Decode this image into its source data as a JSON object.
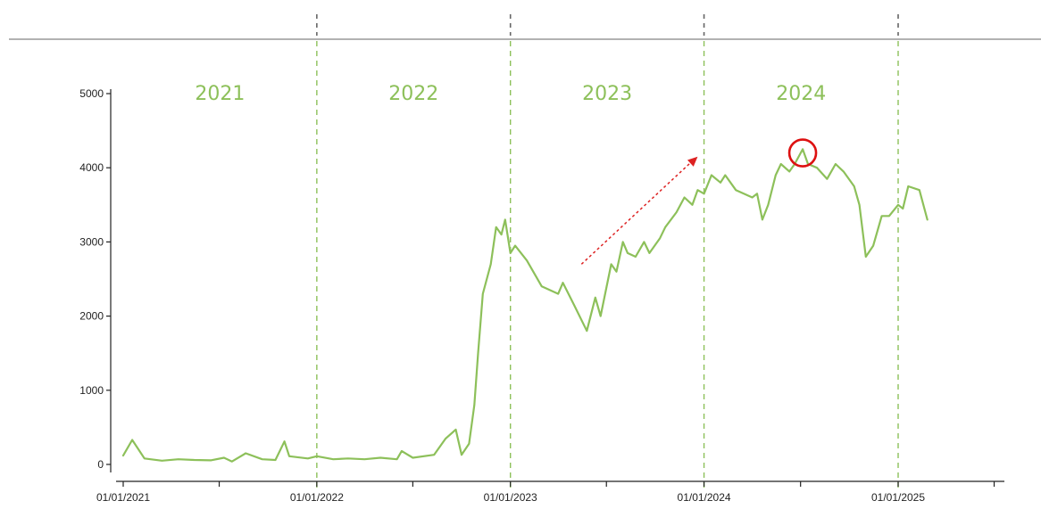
{
  "chart_data": {
    "type": "line",
    "title": "",
    "xlabel": "",
    "ylabel": "",
    "ylim": [
      0,
      5000
    ],
    "xlim": [
      "2021-01-01",
      "2025-06-01"
    ],
    "y_ticks": [
      "0",
      "1000",
      "2000",
      "3000",
      "4000",
      "5000"
    ],
    "x_ticks": [
      {
        "date": "2021-01-01",
        "label": "01/01/2021"
      },
      {
        "date": "2022-01-01",
        "label": "01/01/2022"
      },
      {
        "date": "2023-01-01",
        "label": "01/01/2023"
      },
      {
        "date": "2024-01-01",
        "label": "01/01/2024"
      },
      {
        "date": "2025-01-01",
        "label": "01/01/2025"
      }
    ],
    "year_labels": [
      {
        "year_start": "2021-01-01",
        "year_end": "2022-01-01",
        "text": "2021"
      },
      {
        "year_start": "2022-01-01",
        "year_end": "2023-01-01",
        "text": "2022"
      },
      {
        "year_start": "2023-01-01",
        "year_end": "2024-01-01",
        "text": "2023"
      },
      {
        "year_start": "2024-01-01",
        "year_end": "2025-01-01",
        "text": "2024"
      }
    ],
    "year_boundaries": [
      "2022-01-01",
      "2023-01-01",
      "2024-01-01",
      "2025-01-01"
    ],
    "grid": false,
    "series": [
      {
        "color": "#8dc05a",
        "points": [
          [
            "2021-01-01",
            120
          ],
          [
            "2021-01-18",
            330
          ],
          [
            "2021-02-10",
            80
          ],
          [
            "2021-03-15",
            50
          ],
          [
            "2021-04-15",
            70
          ],
          [
            "2021-05-15",
            60
          ],
          [
            "2021-06-15",
            55
          ],
          [
            "2021-07-10",
            90
          ],
          [
            "2021-07-25",
            40
          ],
          [
            "2021-08-20",
            150
          ],
          [
            "2021-09-20",
            70
          ],
          [
            "2021-10-15",
            60
          ],
          [
            "2021-11-01",
            310
          ],
          [
            "2021-11-10",
            110
          ],
          [
            "2021-12-15",
            80
          ],
          [
            "2022-01-01",
            110
          ],
          [
            "2022-02-01",
            70
          ],
          [
            "2022-03-01",
            80
          ],
          [
            "2022-04-01",
            70
          ],
          [
            "2022-05-01",
            90
          ],
          [
            "2022-06-01",
            70
          ],
          [
            "2022-06-10",
            180
          ],
          [
            "2022-07-01",
            90
          ],
          [
            "2022-08-10",
            130
          ],
          [
            "2022-09-01",
            350
          ],
          [
            "2022-09-20",
            470
          ],
          [
            "2022-10-01",
            130
          ],
          [
            "2022-10-15",
            280
          ],
          [
            "2022-10-25",
            800
          ],
          [
            "2022-11-01",
            1500
          ],
          [
            "2022-11-10",
            2300
          ],
          [
            "2022-11-25",
            2700
          ],
          [
            "2022-12-05",
            3200
          ],
          [
            "2022-12-15",
            3100
          ],
          [
            "2022-12-22",
            3300
          ],
          [
            "2023-01-01",
            2850
          ],
          [
            "2023-01-10",
            2950
          ],
          [
            "2023-02-01",
            2750
          ],
          [
            "2023-03-01",
            2400
          ],
          [
            "2023-04-01",
            2300
          ],
          [
            "2023-04-10",
            2450
          ],
          [
            "2023-05-01",
            2150
          ],
          [
            "2023-05-25",
            1800
          ],
          [
            "2023-06-10",
            2250
          ],
          [
            "2023-06-20",
            2000
          ],
          [
            "2023-07-10",
            2700
          ],
          [
            "2023-07-20",
            2600
          ],
          [
            "2023-08-01",
            3000
          ],
          [
            "2023-08-10",
            2850
          ],
          [
            "2023-08-25",
            2800
          ],
          [
            "2023-09-10",
            3000
          ],
          [
            "2023-09-20",
            2850
          ],
          [
            "2023-10-10",
            3050
          ],
          [
            "2023-10-20",
            3200
          ],
          [
            "2023-11-10",
            3400
          ],
          [
            "2023-11-25",
            3600
          ],
          [
            "2023-12-10",
            3500
          ],
          [
            "2023-12-20",
            3700
          ],
          [
            "2024-01-01",
            3650
          ],
          [
            "2024-01-15",
            3900
          ],
          [
            "2024-02-01",
            3800
          ],
          [
            "2024-02-10",
            3900
          ],
          [
            "2024-03-01",
            3700
          ],
          [
            "2024-04-01",
            3600
          ],
          [
            "2024-04-10",
            3650
          ],
          [
            "2024-04-20",
            3300
          ],
          [
            "2024-05-01",
            3500
          ],
          [
            "2024-05-15",
            3900
          ],
          [
            "2024-05-25",
            4050
          ],
          [
            "2024-06-10",
            3950
          ],
          [
            "2024-06-20",
            4050
          ],
          [
            "2024-07-05",
            4250
          ],
          [
            "2024-07-15",
            4050
          ],
          [
            "2024-08-01",
            4000
          ],
          [
            "2024-08-20",
            3850
          ],
          [
            "2024-09-05",
            4050
          ],
          [
            "2024-09-20",
            3950
          ],
          [
            "2024-10-10",
            3750
          ],
          [
            "2024-10-20",
            3500
          ],
          [
            "2024-11-01",
            2800
          ],
          [
            "2024-11-15",
            2950
          ],
          [
            "2024-12-01",
            3350
          ],
          [
            "2024-12-15",
            3350
          ],
          [
            "2025-01-01",
            3500
          ],
          [
            "2025-01-10",
            3450
          ],
          [
            "2025-01-20",
            3750
          ],
          [
            "2025-02-10",
            3700
          ],
          [
            "2025-02-25",
            3300
          ]
        ]
      }
    ],
    "annotations": {
      "trend_arrow": {
        "from": [
          "2023-05-15",
          2700
        ],
        "to": [
          "2023-12-20",
          4150
        ],
        "color": "#dd2222"
      },
      "peak_circle": {
        "at": [
          "2024-07-05",
          4200
        ],
        "color": "#dd1111"
      }
    },
    "colors": {
      "line": "#8dc05a",
      "year_label": "#8dc05a",
      "boundary": "#8dc05a",
      "header_rule": "#999999",
      "axis": "#222222"
    }
  }
}
